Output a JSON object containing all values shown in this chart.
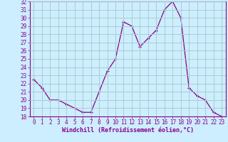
{
  "x": [
    0,
    1,
    2,
    3,
    4,
    5,
    6,
    7,
    8,
    9,
    10,
    11,
    12,
    13,
    14,
    15,
    16,
    17,
    18,
    19,
    20,
    21,
    22,
    23
  ],
  "y": [
    22.5,
    21.5,
    20.0,
    20.0,
    19.5,
    19.0,
    18.5,
    18.5,
    21.0,
    23.5,
    25.0,
    29.5,
    29.0,
    26.5,
    27.5,
    28.5,
    31.0,
    32.0,
    30.0,
    21.5,
    20.5,
    20.0,
    18.5,
    18.0
  ],
  "line_color": "#880088",
  "marker": "+",
  "bg_color": "#cceeff",
  "grid_color": "#aacccc",
  "xlabel": "Windchill (Refroidissement éolien,°C)",
  "xlabel_color": "#880088",
  "tick_color": "#880088",
  "ylim": [
    18,
    32
  ],
  "xlim_min": -0.5,
  "xlim_max": 23.5,
  "yticks": [
    18,
    19,
    20,
    21,
    22,
    23,
    24,
    25,
    26,
    27,
    28,
    29,
    30,
    31,
    32
  ],
  "xticks": [
    0,
    1,
    2,
    3,
    4,
    5,
    6,
    7,
    8,
    9,
    10,
    11,
    12,
    13,
    14,
    15,
    16,
    17,
    18,
    19,
    20,
    21,
    22,
    23
  ],
  "tick_fontsize": 5.5,
  "xlabel_fontsize": 6.0
}
